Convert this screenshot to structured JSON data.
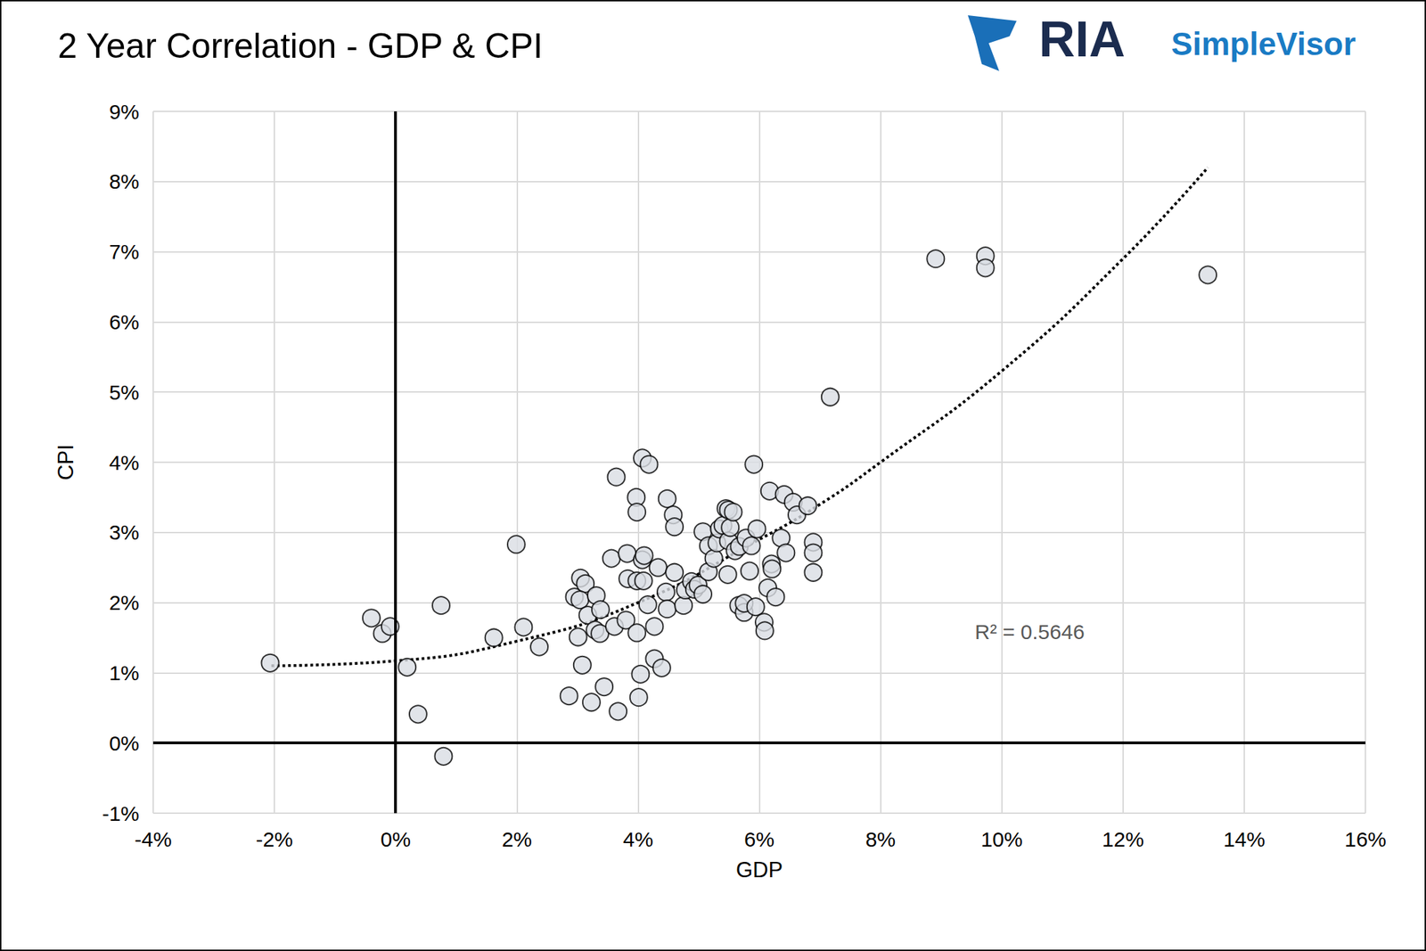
{
  "chart_data": {
    "type": "scatter",
    "title": "2 Year Correlation - GDP & CPI",
    "brand": "RIA",
    "brand_sub": "SimpleVisor",
    "x_label": "GDP",
    "y_label": "CPI",
    "annotation": "R² = 0.5646",
    "color": "#d9dde3",
    "marker": "circle",
    "grid": true,
    "reference_lines": {
      "x": 0,
      "y": 0
    },
    "xlim": [
      -4,
      16
    ],
    "xticks": [
      {
        "value": -4,
        "label": "-4%"
      },
      {
        "value": -2,
        "label": "-2%"
      },
      {
        "value": 0,
        "label": "0%"
      },
      {
        "value": 2,
        "label": "2%"
      },
      {
        "value": 4,
        "label": "4%"
      },
      {
        "value": 6,
        "label": "6%"
      },
      {
        "value": 8,
        "label": "8%"
      },
      {
        "value": 10,
        "label": "10%"
      },
      {
        "value": 12,
        "label": "12%"
      },
      {
        "value": 14,
        "label": "14%"
      },
      {
        "value": 16,
        "label": "16%"
      }
    ],
    "ylim": [
      -1,
      9
    ],
    "yticks": [
      {
        "value": -1,
        "label": "-1%"
      },
      {
        "value": 0,
        "label": "0%"
      },
      {
        "value": 1,
        "label": "1%"
      },
      {
        "value": 2,
        "label": "2%"
      },
      {
        "value": 3,
        "label": "3%"
      },
      {
        "value": 4,
        "label": "4%"
      },
      {
        "value": 5,
        "label": "5%"
      },
      {
        "value": 6,
        "label": "6%"
      },
      {
        "value": 7,
        "label": "7%"
      },
      {
        "value": 8,
        "label": "8%"
      },
      {
        "value": 9,
        "label": "9%"
      }
    ],
    "x": [
      -2.07,
      -0.4,
      -0.22,
      -0.09,
      0.19,
      0.37,
      0.75,
      0.79,
      1.62,
      1.99,
      2.11,
      2.37,
      2.86,
      2.95,
      3.05,
      3.13,
      3.04,
      3.01,
      3.08,
      3.17,
      3.23,
      3.31,
      3.38,
      3.29,
      3.37,
      3.44,
      3.56,
      3.64,
      3.61,
      3.67,
      3.8,
      3.82,
      3.83,
      3.97,
      3.98,
      3.98,
      3.98,
      4.01,
      4.04,
      4.07,
      4.07,
      4.09,
      4.1,
      4.18,
      4.16,
      4.27,
      4.27,
      4.33,
      4.39,
      4.48,
      4.46,
      4.48,
      4.58,
      4.6,
      4.6,
      4.75,
      4.78,
      4.88,
      4.93,
      4.99,
      5.07,
      5.07,
      5.16,
      5.16,
      5.25,
      5.3,
      5.34,
      5.4,
      5.45,
      5.48,
      5.49,
      5.49,
      5.52,
      5.57,
      5.6,
      5.66,
      5.67,
      5.75,
      5.75,
      5.78,
      5.84,
      5.87,
      5.91,
      5.94,
      5.96,
      6.08,
      6.09,
      6.14,
      6.17,
      6.2,
      6.21,
      6.27,
      6.36,
      6.41,
      6.44,
      6.56,
      6.62,
      6.8,
      6.89,
      6.89,
      6.89,
      7.17,
      8.91,
      9.73,
      9.73,
      13.4
    ],
    "values": [
      1.14,
      1.78,
      1.56,
      1.66,
      1.08,
      0.41,
      1.96,
      -0.19,
      1.5,
      2.83,
      1.65,
      1.37,
      0.67,
      2.08,
      2.35,
      2.27,
      2.04,
      1.51,
      1.11,
      1.82,
      0.58,
      2.1,
      1.9,
      1.61,
      1.56,
      0.8,
      2.63,
      3.79,
      1.66,
      0.45,
      1.75,
      2.7,
      2.34,
      3.5,
      3.29,
      2.31,
      1.57,
      0.65,
      0.98,
      4.06,
      2.61,
      2.31,
      2.67,
      3.97,
      1.97,
      1.66,
      1.2,
      2.5,
      1.07,
      3.48,
      2.15,
      1.91,
      3.25,
      3.08,
      2.43,
      1.96,
      2.18,
      2.3,
      2.19,
      2.25,
      2.12,
      3.01,
      2.81,
      2.44,
      2.63,
      2.85,
      3.05,
      3.1,
      3.34,
      2.4,
      3.32,
      2.88,
      3.07,
      3.29,
      2.74,
      1.96,
      2.8,
      1.86,
      1.99,
      2.92,
      2.45,
      2.81,
      3.97,
      1.94,
      3.05,
      1.72,
      1.6,
      2.21,
      3.59,
      2.55,
      2.48,
      2.08,
      2.92,
      3.54,
      2.71,
      3.43,
      3.25,
      3.38,
      2.86,
      2.71,
      2.43,
      4.93,
      6.9,
      6.94,
      6.77,
      6.67
    ],
    "trendline": {
      "line_style": "dotted",
      "color": "#000000",
      "x": [
        -2.05,
        0,
        2,
        4,
        6,
        7,
        8,
        10,
        12,
        13.4
      ],
      "values": [
        1.1,
        1.17,
        1.45,
        2.0,
        2.9,
        3.4,
        4.0,
        5.3,
        6.9,
        8.2
      ]
    }
  }
}
